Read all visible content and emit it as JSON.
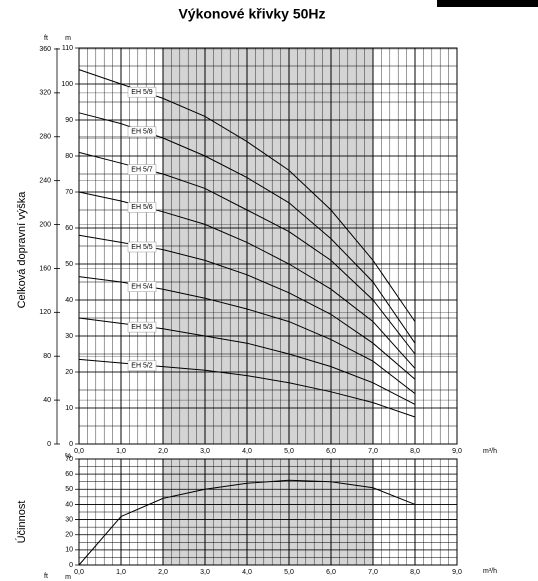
{
  "title": "Výkonové křivky 50Hz",
  "chart_data": [
    {
      "type": "line",
      "y_label": "Celková dopravní výška",
      "x_unit": "m³/h",
      "y_unit": "m",
      "y2_unit": "ft",
      "x": [
        0,
        1,
        2,
        3,
        4,
        5,
        6,
        7,
        8
      ],
      "xlim": [
        0,
        9
      ],
      "xticks": [
        {
          "value": 0,
          "label": "0,0"
        },
        {
          "value": 1,
          "label": "1,0"
        },
        {
          "value": 2,
          "label": "2,0"
        },
        {
          "value": 3,
          "label": "3,0"
        },
        {
          "value": 4,
          "label": "4,0"
        },
        {
          "value": 5,
          "label": "5,0"
        },
        {
          "value": 6,
          "label": "6,0"
        },
        {
          "value": 7,
          "label": "7,0"
        },
        {
          "value": 8,
          "label": "8,0"
        },
        {
          "value": 9,
          "label": "9,0"
        }
      ],
      "ylim": [
        0,
        110
      ],
      "yticks": [
        0,
        10,
        20,
        30,
        40,
        50,
        60,
        70,
        80,
        90,
        100,
        110
      ],
      "y2lim": [
        0,
        360.9
      ],
      "y2ticks": [
        0,
        40,
        80,
        120,
        160,
        200,
        240,
        280,
        320,
        360
      ],
      "highlight_x": [
        2,
        7
      ],
      "grid": true,
      "series": [
        {
          "name": "EH 5/9",
          "color": "#000000",
          "values": [
            104,
            100,
            96,
            91,
            84,
            76,
            65,
            51,
            34
          ]
        },
        {
          "name": "EH 5/8",
          "color": "#000000",
          "values": [
            92,
            89,
            85,
            80,
            74,
            67,
            57,
            45,
            28
          ]
        },
        {
          "name": "EH 5/7",
          "color": "#000000",
          "values": [
            81,
            78,
            75,
            71,
            65,
            59,
            51,
            40,
            25
          ]
        },
        {
          "name": "EH 5/6",
          "color": "#000000",
          "values": [
            70,
            67.5,
            64.5,
            61,
            56,
            50,
            43,
            34,
            21
          ]
        },
        {
          "name": "EH 5/5",
          "color": "#000000",
          "values": [
            58,
            56,
            54,
            51,
            47,
            42,
            36,
            28,
            18
          ]
        },
        {
          "name": "EH 5/4",
          "color": "#000000",
          "values": [
            46.5,
            45,
            43,
            40.5,
            37.5,
            34,
            29,
            23,
            14
          ]
        },
        {
          "name": "EH 5/3",
          "color": "#000000",
          "values": [
            35,
            33.5,
            32,
            30,
            28,
            25,
            21.5,
            17,
            11
          ]
        },
        {
          "name": "EH 5/2",
          "color": "#000000",
          "values": [
            23.5,
            22.5,
            21.5,
            20.5,
            19,
            17,
            14.5,
            11.5,
            7.5
          ]
        }
      ]
    },
    {
      "type": "line",
      "y_label": "Účinnost",
      "x_unit": "m³/h",
      "y_unit": "%",
      "footer_units": [
        "ft",
        "m"
      ],
      "x": [
        0,
        1,
        2,
        3,
        4,
        5,
        6,
        7,
        8
      ],
      "xlim": [
        0,
        9
      ],
      "xticks": [
        {
          "value": 0,
          "label": "0,0"
        },
        {
          "value": 1,
          "label": "1,0"
        },
        {
          "value": 2,
          "label": "2,0"
        },
        {
          "value": 3,
          "label": "3,0"
        },
        {
          "value": 4,
          "label": "4,0"
        },
        {
          "value": 5,
          "label": "5,0"
        },
        {
          "value": 6,
          "label": "6,0"
        },
        {
          "value": 7,
          "label": "7,0"
        },
        {
          "value": 8,
          "label": "8,0"
        },
        {
          "value": 9,
          "label": "9,0"
        }
      ],
      "ylim": [
        0,
        70
      ],
      "yticks": [
        0,
        10,
        20,
        30,
        40,
        50,
        60,
        70
      ],
      "highlight_x": [
        2,
        7
      ],
      "grid": true,
      "series": [
        {
          "color": "#000000",
          "values": [
            0,
            32,
            44,
            50,
            54,
            56,
            55,
            51,
            40
          ]
        }
      ]
    }
  ]
}
